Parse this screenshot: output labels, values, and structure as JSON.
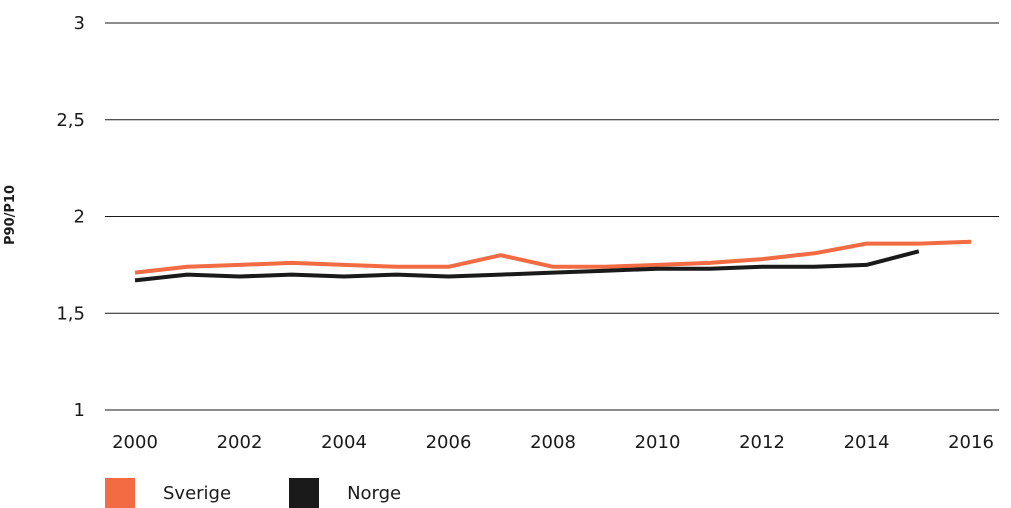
{
  "chart_data": {
    "type": "line",
    "title": "",
    "xlabel": "",
    "ylabel": "P90/P10",
    "ylim": [
      1,
      3
    ],
    "yticks": [
      "1",
      "1,5",
      "2",
      "2,5",
      "3"
    ],
    "xlim": [
      2000,
      2016
    ],
    "xticks": [
      "2000",
      "2002",
      "2004",
      "2006",
      "2008",
      "2010",
      "2012",
      "2014",
      "2016"
    ],
    "grid": true,
    "legend_position": "bottom-left",
    "series": [
      {
        "name": "Sverige",
        "color": "#F26B43",
        "x": [
          2000,
          2001,
          2002,
          2003,
          2004,
          2005,
          2006,
          2007,
          2008,
          2009,
          2010,
          2011,
          2012,
          2013,
          2014,
          2015,
          2016
        ],
        "values": [
          1.71,
          1.74,
          1.75,
          1.76,
          1.75,
          1.74,
          1.74,
          1.8,
          1.74,
          1.74,
          1.75,
          1.76,
          1.78,
          1.81,
          1.86,
          1.86,
          1.87
        ]
      },
      {
        "name": "Norge",
        "color": "#1A1A1A",
        "x": [
          2000,
          2001,
          2002,
          2003,
          2004,
          2005,
          2006,
          2007,
          2008,
          2009,
          2010,
          2011,
          2012,
          2013,
          2014,
          2015
        ],
        "values": [
          1.67,
          1.7,
          1.69,
          1.7,
          1.69,
          1.7,
          1.69,
          1.7,
          1.71,
          1.72,
          1.73,
          1.73,
          1.74,
          1.74,
          1.75,
          1.82
        ]
      }
    ]
  }
}
